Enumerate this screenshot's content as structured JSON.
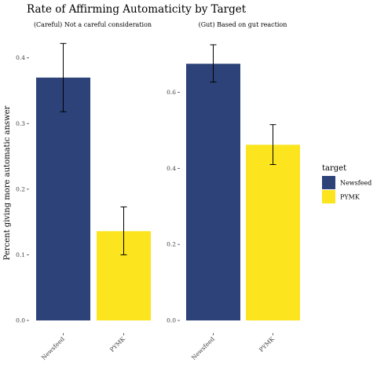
{
  "chart_data": {
    "type": "bar",
    "title": "Rate of Affirming Automaticity by Target",
    "ylabel": "Percent giving more automatic answer",
    "legend": {
      "title": "target",
      "placement": "right",
      "entries": [
        {
          "label": "Newsfeed",
          "color": "#2C4279"
        },
        {
          "label": "PYMK",
          "color": "#FCE41E"
        }
      ]
    },
    "panels": [
      {
        "title": "(Careful) Not a careful consideration",
        "categories": [
          "Newsfeed",
          "PYMK"
        ],
        "values": [
          0.37,
          0.136
        ],
        "error_low": [
          0.318,
          0.1
        ],
        "error_high": [
          0.422,
          0.173
        ],
        "ylim": [
          0,
          0.42
        ],
        "yticks": [
          0.0,
          0.1,
          0.2,
          0.3,
          0.4
        ],
        "ytick_labels": [
          "0.0",
          "0.1",
          "0.2",
          "0.3",
          "0.4"
        ]
      },
      {
        "title": "(Gut) Based on gut reaction",
        "categories": [
          "Newsfeed",
          "PYMK"
        ],
        "values": [
          0.675,
          0.462
        ],
        "error_low": [
          0.627,
          0.41
        ],
        "error_high": [
          0.725,
          0.515
        ],
        "ylim": [
          0,
          0.725
        ],
        "yticks": [
          0.0,
          0.2,
          0.4,
          0.6
        ],
        "ytick_labels": [
          "0.0",
          "0.2",
          "0.4",
          "0.6"
        ]
      }
    ],
    "grid": false
  }
}
